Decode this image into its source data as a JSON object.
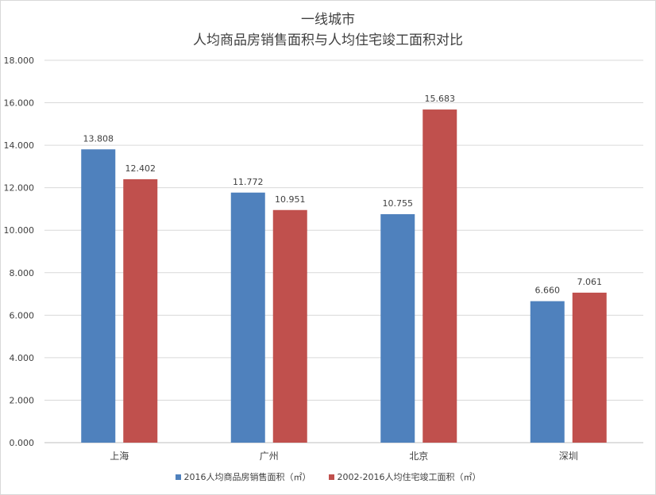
{
  "chart_data": {
    "type": "bar",
    "title_line1": "一线城市",
    "title_line2": "人均商品房销售面积与人均住宅竣工面积对比",
    "categories": [
      "上海",
      "广州",
      "北京",
      "深圳"
    ],
    "series": [
      {
        "name": "2016人均商品房销售面积（㎡）",
        "color": "#4f81bd",
        "values": [
          13.808,
          11.772,
          10.755,
          6.66
        ],
        "labels": [
          "13.808",
          "11.772",
          "10.755",
          "6.660"
        ]
      },
      {
        "name": "2002-2016人均住宅竣工面积（㎡）",
        "color": "#c0504d",
        "values": [
          12.402,
          10.951,
          15.683,
          7.061
        ],
        "labels": [
          "12.402",
          "10.951",
          "15.683",
          "7.061"
        ]
      }
    ],
    "ylim": [
      0,
      18
    ],
    "yticks": [
      "0.000",
      "2.000",
      "4.000",
      "6.000",
      "8.000",
      "10.000",
      "12.000",
      "14.000",
      "16.000",
      "18.000"
    ],
    "grid": true,
    "legend_position": "bottom",
    "xlabel": "",
    "ylabel": ""
  }
}
